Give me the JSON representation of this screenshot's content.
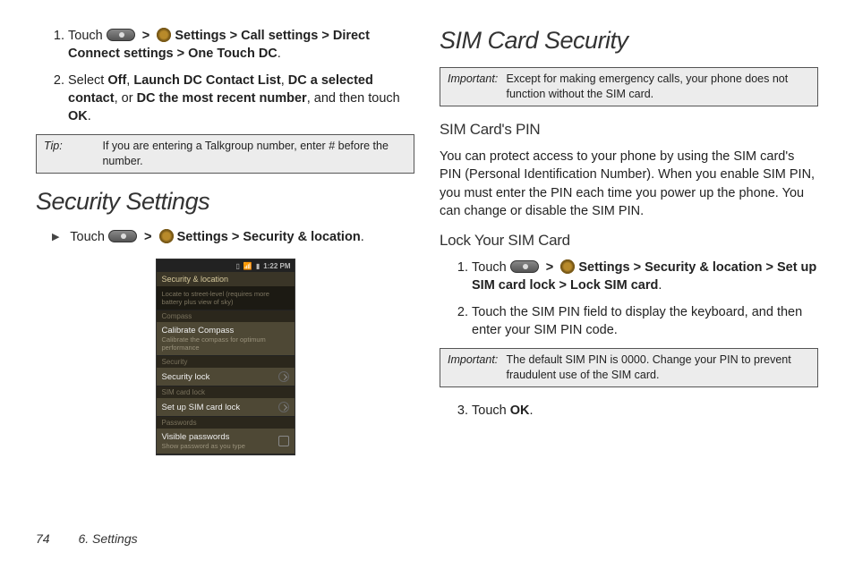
{
  "left": {
    "step1_a": "Touch  ",
    "step1_b": "Settings",
    "step1_c": "Call settings",
    "step1_d": "Direct Connect settings",
    "step1_e": "One Touch DC",
    "step2_a": "Select ",
    "step2_off": "Off",
    "step2_l": "Launch DC Contact List",
    "step2_dcsel": "DC a selected contact",
    "step2_or": ", or ",
    "step2_recent": "DC the most recent number",
    "step2_then": ", and then touch ",
    "step2_ok": "OK",
    "tip_lbl": "Tip:",
    "tip_txt": "If you are entering a Talkgroup number, enter # before the number.",
    "security_h": "Security Settings",
    "touch": "Touch  ",
    "settings": "Settings",
    "secloc": "Security & location"
  },
  "right": {
    "h": "SIM Card Security",
    "imp_lbl": "Important:",
    "imp_txt": "Except for making emergency calls, your phone does not function without the SIM card.",
    "pin_h": "SIM Card's PIN",
    "pin_p": "You can protect access to your phone by using the SIM card's PIN (Personal Identification Number). When you enable SIM PIN, you must enter the PIN each time you power up the phone. You can change or disable the SIM PIN.",
    "lock_h": "Lock Your SIM Card",
    "s1_a": "Touch  ",
    "s1_set": "Settings",
    "s1_secloc": "Security & location",
    "s1_setup": "Set up SIM card lock",
    "s1_lock": "Lock SIM card",
    "s2": "Touch the SIM PIN field to display the keyboard, and then enter your SIM PIN code.",
    "imp2_lbl": "Important:",
    "imp2_txt": "The default SIM PIN is 0000. Change your PIN to prevent fraudulent use of the SIM card.",
    "s3_a": "Touch ",
    "s3_ok": "OK"
  },
  "phone": {
    "time": "1:22 PM",
    "title": "Security & location",
    "row1": "Locate to street-level (requires more battery plus view of sky)",
    "grp1": "Compass",
    "cal_t": "Calibrate Compass",
    "cal_s": "Calibrate the compass for optimum performance",
    "grp2": "Security",
    "seclock": "Security lock",
    "grp3": "SIM card lock",
    "setup": "Set up SIM card lock",
    "grp4": "Passwords",
    "vis_t": "Visible passwords",
    "vis_s": "Show password as you type"
  },
  "footer": {
    "page": "74",
    "section": "6. Settings"
  },
  "gt": ">"
}
